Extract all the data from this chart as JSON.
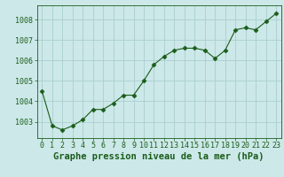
{
  "x": [
    0,
    1,
    2,
    3,
    4,
    5,
    6,
    7,
    8,
    9,
    10,
    11,
    12,
    13,
    14,
    15,
    16,
    17,
    18,
    19,
    20,
    21,
    22,
    23
  ],
  "y": [
    1004.5,
    1002.8,
    1002.6,
    1002.8,
    1003.1,
    1003.6,
    1003.6,
    1003.9,
    1004.3,
    1004.3,
    1005.0,
    1005.8,
    1006.2,
    1006.5,
    1006.6,
    1006.6,
    1006.5,
    1006.1,
    1006.5,
    1007.5,
    1007.6,
    1007.5,
    1007.9,
    1008.3
  ],
  "ylim": [
    1002.2,
    1008.7
  ],
  "yticks": [
    1003,
    1004,
    1005,
    1006,
    1007,
    1008
  ],
  "xlim": [
    -0.5,
    23.5
  ],
  "xticks": [
    0,
    1,
    2,
    3,
    4,
    5,
    6,
    7,
    8,
    9,
    10,
    11,
    12,
    13,
    14,
    15,
    16,
    17,
    18,
    19,
    20,
    21,
    22,
    23
  ],
  "line_color": "#1a5c1a",
  "marker": "D",
  "marker_size": 2.5,
  "bg_color": "#cce8e8",
  "grid_color": "#aacece",
  "xlabel": "Graphe pression niveau de la mer (hPa)",
  "xlabel_color": "#1a5c1a",
  "tick_color": "#1a5c1a",
  "label_fontsize": 6.0,
  "xlabel_fontsize": 7.5
}
